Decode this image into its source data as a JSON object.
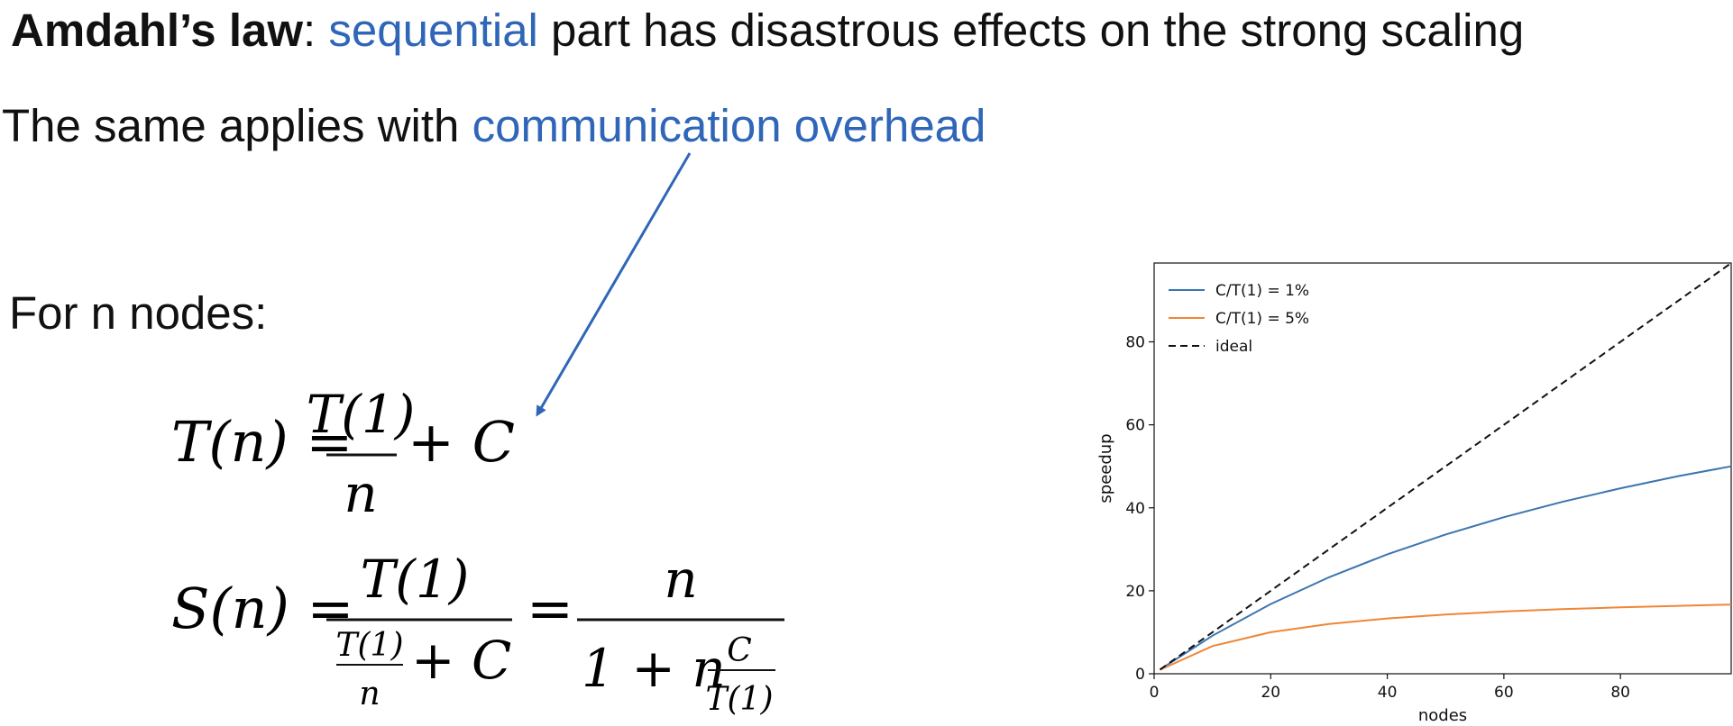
{
  "slide": {
    "line1": {
      "term": "Amdahl’s law",
      "colon": ": ",
      "highlight": "sequential",
      "rest": " part has disastrous effects on the strong scaling"
    },
    "line2": {
      "prefix": "The same applies with ",
      "highlight": "communication overhead"
    },
    "line3": "For n nodes:"
  },
  "equations": {
    "eq1": {
      "lhs": "T(n) =",
      "numerator": "T(1)",
      "denominator": "n",
      "tail": "+ C"
    },
    "eq2": {
      "lhs": "S(n) =",
      "numerator": "T(1)",
      "den_frac_num": "T(1)",
      "den_frac_den": "n",
      "den_tail": "+ C",
      "equals": "=",
      "rhs_numerator": "n",
      "rhs_den_prefix": "1 + n",
      "rhs_den_frac_num": "C",
      "rhs_den_frac_den": "T(1)"
    }
  },
  "colors": {
    "highlight": "#2f66b8",
    "arrow": "#2f66b8",
    "series1": "#3b75af",
    "series2": "#ef8636",
    "ideal": "#111111"
  },
  "chart_data": {
    "type": "line",
    "xlabel": "nodes",
    "ylabel": "speedup",
    "xlim": [
      0,
      99
    ],
    "ylim": [
      0,
      99
    ],
    "xticks": [
      0,
      20,
      40,
      60,
      80
    ],
    "yticks": [
      0,
      20,
      40,
      60,
      80
    ],
    "grid": false,
    "legend_position": "top-left",
    "series": [
      {
        "name": "C/T(1) = 1%",
        "color": "#3b75af",
        "style": "solid",
        "x": [
          1,
          10,
          20,
          30,
          40,
          50,
          60,
          70,
          80,
          90,
          99
        ],
        "values": [
          0.99,
          9.17,
          16.81,
          23.26,
          28.78,
          33.56,
          37.74,
          41.43,
          44.71,
          47.65,
          50.0
        ]
      },
      {
        "name": "C/T(1) = 5%",
        "color": "#ef8636",
        "style": "solid",
        "x": [
          1,
          10,
          20,
          30,
          40,
          50,
          60,
          70,
          80,
          90,
          99
        ],
        "values": [
          0.95,
          6.67,
          10.0,
          12.0,
          13.33,
          14.29,
          15.0,
          15.56,
          16.0,
          16.36,
          16.67
        ]
      },
      {
        "name": "ideal",
        "color": "#111111",
        "style": "dashed",
        "x": [
          1,
          99
        ],
        "values": [
          1,
          99
        ]
      }
    ],
    "legend_labels": [
      {
        "text": "C/T(1) = 1%"
      },
      {
        "text": "C/T(1) = 5%"
      },
      {
        "text": "ideal"
      }
    ]
  }
}
